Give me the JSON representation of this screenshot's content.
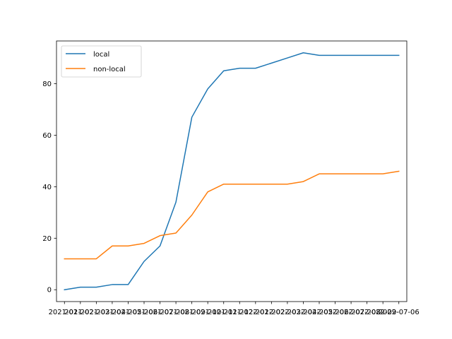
{
  "chart_data": {
    "type": "line",
    "title": "",
    "xlabel": "",
    "ylabel": "",
    "x": [
      "2021-01",
      "2021-02",
      "2021-03",
      "2021-04",
      "2021-05",
      "2021-06",
      "2021-07",
      "2021-08",
      "2021-09",
      "2021-10",
      "2021-11",
      "2021-12",
      "2022-01",
      "2022-02",
      "2022-03",
      "2022-04",
      "2022-05",
      "2022-06",
      "2022-07",
      "2022-08",
      "2022-09",
      "2022-07-06"
    ],
    "series": [
      {
        "name": "local",
        "color": "#1f77b4",
        "values": [
          0,
          1,
          1,
          2,
          2,
          11,
          17,
          34,
          67,
          78,
          85,
          86,
          86,
          88,
          90,
          92,
          91,
          91,
          91,
          91,
          91,
          91
        ]
      },
      {
        "name": "non-local",
        "color": "#ff7f0e",
        "values": [
          12,
          12,
          12,
          17,
          17,
          18,
          21,
          22,
          29,
          38,
          41,
          41,
          41,
          41,
          41,
          42,
          45,
          45,
          45,
          45,
          45,
          46
        ]
      }
    ],
    "ylim": [
      -4.6,
      96.6
    ],
    "yticks": [
      0,
      20,
      40,
      60,
      80
    ],
    "xtick_labels": [
      "2021-01-",
      "2021-02-",
      "2021-03-",
      "2021-04-",
      "2021-05-",
      "2021-06-",
      "2021-07-",
      "2021-08-",
      "2021-09-",
      "2021-10-",
      "2021-11-",
      "2021-12-",
      "2022-01-",
      "2022-02-",
      "2022-03-",
      "2022-04-",
      "2022-05-",
      "2022-06-",
      "2022-07-",
      "2022-08-",
      "2022-09-",
      "2022-07-06"
    ],
    "legend_position": "top-left",
    "grid": false
  }
}
